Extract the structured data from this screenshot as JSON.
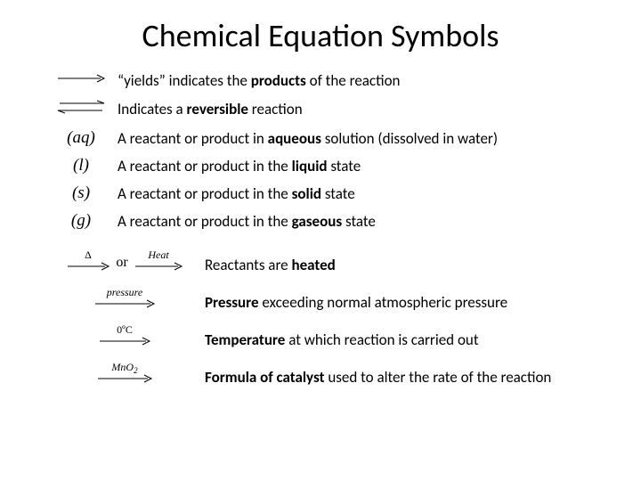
{
  "title": "Chemical Equation Symbols",
  "rows": [
    {
      "symbol_type": "arrow",
      "desc_pre": "“yields” indicates the ",
      "bold": "products",
      "desc_post": " of the reaction"
    },
    {
      "symbol_type": "double_arrow",
      "desc_pre": "Indicates a ",
      "bold": "reversible",
      "desc_post": " reaction"
    },
    {
      "symbol_type": "text",
      "symbol": "(aq)",
      "desc_pre": "A reactant or product in ",
      "bold": "aqueous",
      "desc_post": " solution (dissolved in water)"
    },
    {
      "symbol_type": "text",
      "symbol": "(l)",
      "desc_pre": "A reactant or product in the ",
      "bold": "liquid",
      "desc_post": " state"
    },
    {
      "symbol_type": "text",
      "symbol": "(s)",
      "desc_pre": "A reactant or product in the ",
      "bold": "solid",
      "desc_post": " state"
    },
    {
      "symbol_type": "text",
      "symbol": "(g)",
      "desc_pre": "A reactant or product in the ",
      "bold": "gaseous",
      "desc_post": " state"
    }
  ],
  "rows2": [
    {
      "symbol_type": "heat",
      "desc_pre": "Reactants are ",
      "bold": "heated",
      "desc_post": ""
    },
    {
      "symbol_type": "pressure",
      "desc_pre": "",
      "bold": "Pressure",
      "desc_post": " exceeding normal atmospheric pressure"
    },
    {
      "symbol_type": "temp",
      "desc_pre": "",
      "bold": "Temperature",
      "desc_post": " at which reaction is carried out"
    },
    {
      "symbol_type": "catalyst",
      "desc_pre": "",
      "bold": "Formula of catalyst",
      "desc_post": " used to alter the rate of the reaction"
    }
  ],
  "colors": {
    "bg": "#ffffff",
    "text": "#000000",
    "stroke": "#000000"
  },
  "labels": {
    "or": "or",
    "delta": "Δ",
    "heat": "Heat",
    "pressure": "pressure",
    "temp": "0ºC",
    "catalyst": "MnO",
    "catalyst_sub": "2"
  }
}
